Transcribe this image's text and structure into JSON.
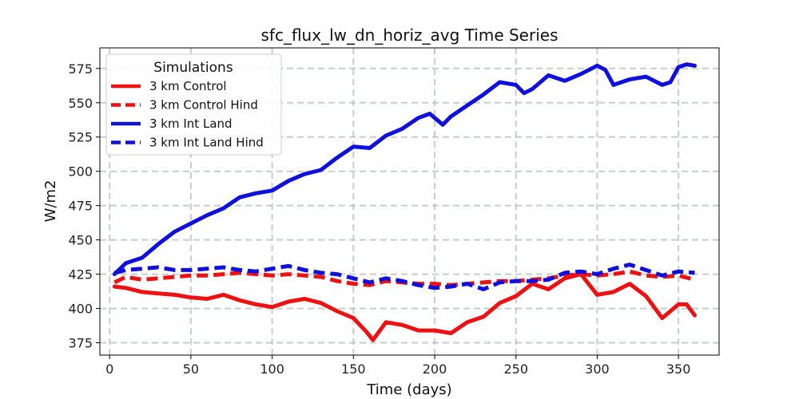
{
  "chart_data": {
    "type": "line",
    "title": "sfc_flux_lw_dn_horiz_avg Time Series",
    "xlabel": "Time (days)",
    "ylabel": "W/m2",
    "xlim": [
      -6,
      375
    ],
    "ylim": [
      366,
      590
    ],
    "grid": true,
    "legend": {
      "title": "Simulations",
      "placement": "top-left"
    },
    "xticks": [
      0,
      50,
      100,
      150,
      200,
      250,
      300,
      350
    ],
    "yticks": [
      375,
      400,
      425,
      450,
      475,
      500,
      525,
      550,
      575
    ],
    "series": [
      {
        "name": "3 km Control",
        "color": "#ee1111",
        "dash": "solid",
        "x": [
          3,
          10,
          20,
          30,
          40,
          50,
          60,
          70,
          80,
          90,
          100,
          110,
          120,
          130,
          140,
          150,
          158,
          162,
          170,
          180,
          190,
          200,
          210,
          220,
          230,
          240,
          250,
          260,
          270,
          280,
          290,
          300,
          310,
          320,
          330,
          340,
          350,
          355,
          360
        ],
        "y": [
          416,
          415,
          412,
          411,
          410,
          408,
          407,
          410,
          406,
          403,
          401,
          405,
          407,
          404,
          398,
          393,
          383,
          377,
          390,
          388,
          384,
          384,
          382,
          390,
          394,
          404,
          409,
          418,
          414,
          422,
          425,
          410,
          412,
          418,
          409,
          393,
          403,
          403,
          395
        ]
      },
      {
        "name": "3 km Control Hind",
        "color": "#ee1111",
        "dash": "dashed",
        "x": [
          3,
          10,
          20,
          30,
          40,
          50,
          60,
          70,
          80,
          90,
          100,
          110,
          120,
          130,
          140,
          150,
          160,
          170,
          180,
          190,
          200,
          210,
          220,
          230,
          240,
          250,
          260,
          270,
          280,
          290,
          300,
          310,
          320,
          330,
          340,
          350,
          360
        ],
        "y": [
          419,
          423,
          421,
          422,
          423,
          424,
          424,
          425,
          426,
          425,
          424,
          425,
          424,
          423,
          420,
          418,
          417,
          420,
          419,
          418,
          418,
          417,
          418,
          419,
          420,
          420,
          421,
          422,
          424,
          425,
          424,
          425,
          427,
          424,
          423,
          424,
          421
        ]
      },
      {
        "name": "3 km Int Land",
        "color": "#1010dd",
        "dash": "solid",
        "x": [
          3,
          10,
          20,
          30,
          40,
          50,
          60,
          70,
          80,
          90,
          100,
          110,
          120,
          130,
          140,
          150,
          160,
          170,
          180,
          190,
          197,
          205,
          210,
          220,
          230,
          240,
          250,
          255,
          260,
          270,
          280,
          290,
          300,
          305,
          310,
          320,
          330,
          340,
          345,
          350,
          355,
          360
        ],
        "y": [
          425,
          433,
          437,
          447,
          456,
          462,
          468,
          473,
          481,
          484,
          486,
          493,
          498,
          501,
          510,
          518,
          517,
          526,
          531,
          539,
          542,
          534,
          540,
          548,
          556,
          565,
          563,
          557,
          560,
          570,
          566,
          571,
          577,
          574,
          563,
          567,
          569,
          563,
          565,
          576,
          578,
          577
        ]
      },
      {
        "name": "3 km Int Land Hind",
        "color": "#1010dd",
        "dash": "dashed",
        "x": [
          3,
          10,
          20,
          30,
          40,
          50,
          60,
          70,
          80,
          90,
          100,
          110,
          120,
          130,
          140,
          150,
          160,
          170,
          180,
          190,
          200,
          210,
          220,
          230,
          240,
          250,
          260,
          270,
          280,
          290,
          300,
          310,
          320,
          330,
          340,
          350,
          360
        ],
        "y": [
          426,
          428,
          429,
          430,
          428,
          428,
          429,
          430,
          428,
          427,
          429,
          431,
          428,
          426,
          425,
          422,
          419,
          422,
          420,
          417,
          415,
          416,
          418,
          414,
          419,
          420,
          420,
          421,
          426,
          427,
          425,
          429,
          432,
          428,
          424,
          427,
          426
        ]
      }
    ]
  }
}
